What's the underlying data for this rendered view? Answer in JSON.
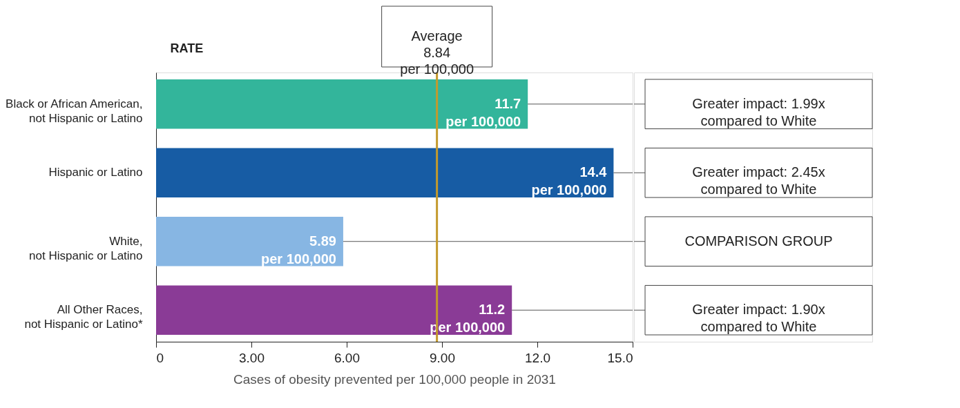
{
  "chart_data": {
    "type": "bar",
    "orientation": "horizontal",
    "categories": [
      "Black or African American,\nnot Hispanic or Latino",
      "Hispanic or Latino",
      "White,\nnot Hispanic or Latino",
      "All Other Races,\nnot Hispanic or Latino*"
    ],
    "values": [
      11.7,
      14.4,
      5.89,
      11.2
    ],
    "colors": [
      "#33b59b",
      "#175ca4",
      "#87b6e3",
      "#8a3b96"
    ],
    "value_labels": [
      "11.7\nper 100,000",
      "14.4\nper 100,000",
      "5.89\nper 100,000",
      "11.2\nper 100,000"
    ],
    "xlabel": "Cases of obesity prevented per 100,000 people in 2031",
    "ylabel": "RATE",
    "xlim": [
      0,
      15
    ],
    "xticks": [
      0,
      {
        "value": 3,
        "label": "3.00"
      },
      {
        "value": 6,
        "label": "6.00"
      },
      {
        "value": 9,
        "label": "9.00"
      },
      {
        "value": 12,
        "label": "12.0"
      },
      {
        "value": 15,
        "label": "15.0"
      }
    ],
    "ref_lines": [
      {
        "axis": "x",
        "value": 8.84,
        "label": "Average\n8.84\nper 100,000",
        "color": "#c49a2c"
      }
    ],
    "annotations": [
      "Greater impact: 1.99x\ncompared to White",
      "Greater impact: 2.45x\ncompared to White",
      "COMPARISON GROUP",
      "Greater impact: 1.90x\ncompared to White"
    ],
    "grid": false
  }
}
